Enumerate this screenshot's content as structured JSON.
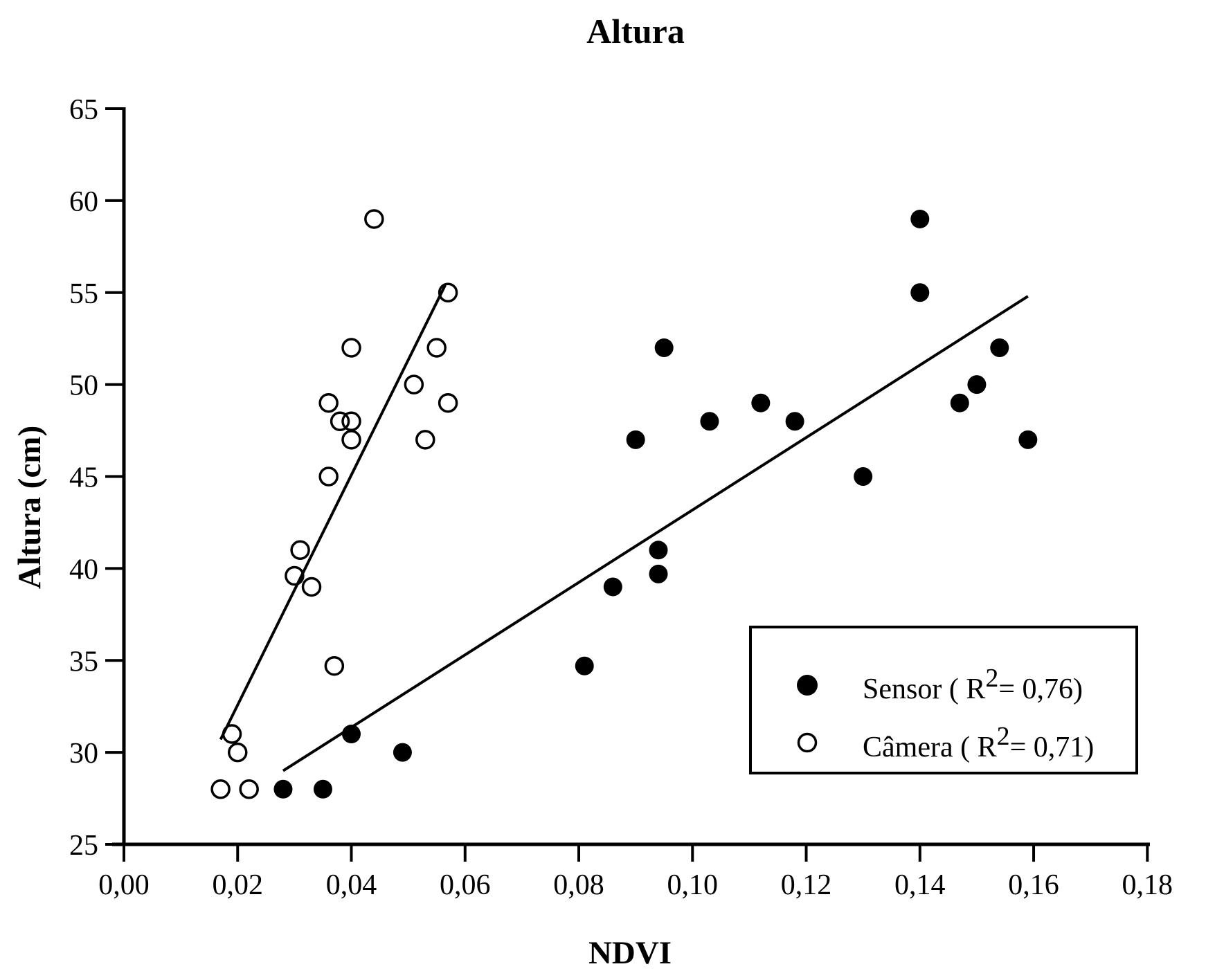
{
  "title": "Altura",
  "colors": {
    "foreground": "#000000",
    "background": "#ffffff"
  },
  "chart_data": {
    "type": "scatter",
    "title": "Altura",
    "xlabel": "NDVI",
    "ylabel": "Altura (cm)",
    "xlim": [
      0,
      0.18
    ],
    "ylim": [
      25,
      65
    ],
    "grid": false,
    "decimal_separator": ",",
    "x_ticks": {
      "values": [
        0.0,
        0.02,
        0.04,
        0.06,
        0.08,
        0.1,
        0.12,
        0.14,
        0.16,
        0.18
      ],
      "labels": [
        "0,00",
        "0,02",
        "0,04",
        "0,06",
        "0,08",
        "0,10",
        "0,12",
        "0,14",
        "0,16",
        "0,18"
      ]
    },
    "y_ticks": {
      "values": [
        25,
        30,
        35,
        40,
        45,
        50,
        55,
        60,
        65
      ],
      "labels": [
        "25",
        "30",
        "35",
        "40",
        "45",
        "50",
        "55",
        "60",
        "65"
      ]
    },
    "legend": {
      "position": "inside-lower-right"
    },
    "series": [
      {
        "name": "Sensor",
        "legend_label": "Sensor ( R²= 0,76)",
        "r_squared": "0,76",
        "marker": "filled-circle",
        "color": "#000000",
        "points": [
          [
            0.028,
            28
          ],
          [
            0.035,
            28
          ],
          [
            0.04,
            31
          ],
          [
            0.049,
            30
          ],
          [
            0.081,
            34.7
          ],
          [
            0.086,
            39
          ],
          [
            0.09,
            47
          ],
          [
            0.094,
            41
          ],
          [
            0.094,
            39.7
          ],
          [
            0.095,
            52
          ],
          [
            0.103,
            48
          ],
          [
            0.112,
            49
          ],
          [
            0.118,
            48
          ],
          [
            0.13,
            45
          ],
          [
            0.14,
            59
          ],
          [
            0.14,
            55
          ],
          [
            0.147,
            49
          ],
          [
            0.15,
            50
          ],
          [
            0.154,
            52
          ],
          [
            0.159,
            47
          ]
        ],
        "trendline": {
          "x": [
            0.028,
            0.159
          ],
          "y": [
            29.0,
            54.8
          ]
        }
      },
      {
        "name": "Câmera",
        "legend_label": "Câmera ( R²= 0,71)",
        "r_squared": "0,71",
        "marker": "open-circle",
        "color": "#000000",
        "points": [
          [
            0.017,
            28
          ],
          [
            0.019,
            31
          ],
          [
            0.02,
            30
          ],
          [
            0.022,
            28
          ],
          [
            0.03,
            39.6
          ],
          [
            0.031,
            41
          ],
          [
            0.033,
            39
          ],
          [
            0.036,
            45
          ],
          [
            0.036,
            49
          ],
          [
            0.037,
            34.7
          ],
          [
            0.038,
            48
          ],
          [
            0.04,
            48
          ],
          [
            0.04,
            47
          ],
          [
            0.04,
            52
          ],
          [
            0.044,
            59
          ],
          [
            0.051,
            50
          ],
          [
            0.053,
            47
          ],
          [
            0.055,
            52
          ],
          [
            0.057,
            55
          ],
          [
            0.057,
            49
          ]
        ],
        "trendline": {
          "x": [
            0.017,
            0.0565
          ],
          "y": [
            30.7,
            55.4
          ]
        }
      }
    ]
  }
}
